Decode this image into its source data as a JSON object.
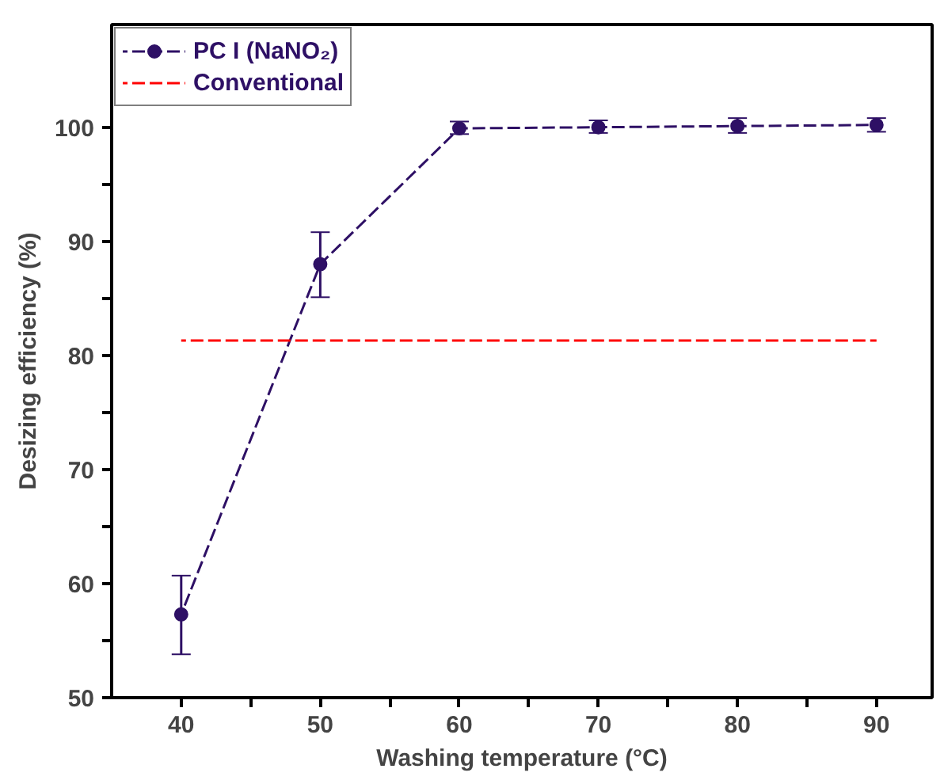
{
  "chart_data": {
    "type": "line",
    "xlabel": "Washing temperature (°C)",
    "ylabel": "Desizing efficiency (%)",
    "x": [
      40,
      50,
      60,
      70,
      80,
      90
    ],
    "series": [
      {
        "name": "PC I (NaNO₂)",
        "color": "#2e1065",
        "values": [
          57.3,
          88.0,
          99.9,
          100.0,
          100.1,
          100.2
        ],
        "errors": [
          [
            53.8,
            60.7
          ],
          [
            85.1,
            90.8
          ],
          [
            99.4,
            100.5
          ],
          [
            99.5,
            100.6
          ],
          [
            99.5,
            100.8
          ],
          [
            99.6,
            100.8
          ]
        ],
        "marker": "circle",
        "line_style": "dashed"
      },
      {
        "name": "Conventional",
        "color": "#ff0000",
        "type": "line",
        "x": [
          40,
          90
        ],
        "values": [
          81.3,
          81.3
        ],
        "marker": "none",
        "line_style": "dashed"
      }
    ],
    "xlim": [
      35,
      94
    ],
    "ylim": [
      50,
      109
    ],
    "xticks": [
      40,
      {
        "value": 45,
        "label": null
      },
      50,
      {
        "value": 55,
        "label": null
      },
      60,
      {
        "value": 65,
        "label": null
      },
      70,
      {
        "value": 75,
        "label": null
      },
      80,
      {
        "value": 85,
        "label": null
      },
      90
    ],
    "yticks": [
      50,
      {
        "value": 55,
        "label": null
      },
      60,
      {
        "value": 65,
        "label": null
      },
      70,
      {
        "value": 75,
        "label": null
      },
      80,
      {
        "value": 85,
        "label": null
      },
      90,
      {
        "value": 95,
        "label": null
      },
      100
    ],
    "grid": false,
    "legend": "top left"
  }
}
